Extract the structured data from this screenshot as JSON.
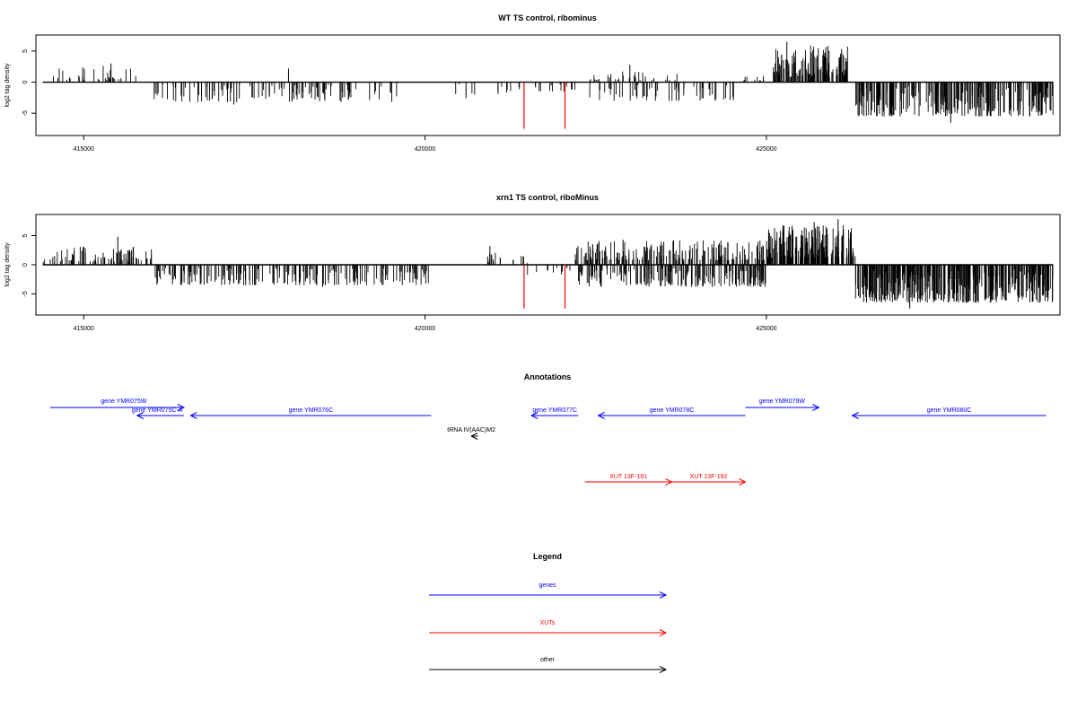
{
  "chart_data": [
    {
      "type": "bar",
      "title": "WT TS control, ribominus",
      "ylabel": "log2 tag density",
      "xlim": [
        414300,
        429300
      ],
      "ylim": [
        -8,
        7
      ],
      "xticks": [
        415000,
        420000,
        425000
      ],
      "yticks": [
        -5,
        0,
        5
      ],
      "colors": {
        "signal": "#000000",
        "trna": "#ff0000"
      },
      "segments": [
        {
          "from": 414400,
          "to": 415800,
          "count": 34,
          "min": 0.3,
          "max": 2.6
        },
        {
          "from": 416000,
          "to": 419600,
          "count": 120,
          "min": -3.2,
          "max": -0.4
        },
        {
          "from": 420400,
          "to": 421400,
          "count": 12,
          "min": -2.0,
          "max": -0.3
        },
        {
          "from": 421600,
          "to": 422200,
          "count": 14,
          "min": -1.5,
          "max": -0.3
        },
        {
          "from": 422400,
          "to": 423800,
          "count": 30,
          "min": 0.3,
          "max": 1.8
        },
        {
          "from": 422400,
          "to": 424600,
          "count": 60,
          "min": -3.0,
          "max": -0.4
        },
        {
          "from": 424600,
          "to": 425000,
          "count": 12,
          "min": 0.2,
          "max": 1.0
        },
        {
          "from": 425100,
          "to": 426200,
          "count": 140,
          "min": 0.8,
          "max": 6.0
        },
        {
          "from": 426300,
          "to": 429200,
          "count": 260,
          "min": -5.5,
          "max": -0.6
        }
      ],
      "spikes": [
        {
          "x": 415400,
          "y": 3.0
        },
        {
          "x": 418000,
          "y": 2.2
        },
        {
          "x": 417200,
          "y": -3.6
        },
        {
          "x": 420600,
          "y": -2.6
        },
        {
          "x": 423000,
          "y": 2.8
        },
        {
          "x": 425300,
          "y": 6.5
        },
        {
          "x": 425900,
          "y": 5.8
        },
        {
          "x": 427700,
          "y": -6.5
        },
        {
          "x": 426400,
          "y": -5.2
        }
      ],
      "trna": [
        {
          "x": 421450,
          "y": -7.5
        },
        {
          "x": 422050,
          "y": -7.5
        }
      ]
    },
    {
      "type": "bar",
      "title": "xrn1 TS control, riboMinus",
      "ylabel": "log2 tag density",
      "xlim": [
        414300,
        429300
      ],
      "ylim": [
        -8,
        8
      ],
      "xticks": [
        415000,
        420000,
        425000
      ],
      "yticks": [
        -5,
        0,
        5
      ],
      "colors": {
        "signal": "#000000",
        "trna": "#ff0000"
      },
      "segments": [
        {
          "from": 414400,
          "to": 416000,
          "count": 80,
          "min": 0.5,
          "max": 3.5
        },
        {
          "from": 416000,
          "to": 420100,
          "count": 200,
          "min": -3.5,
          "max": -0.5
        },
        {
          "from": 420900,
          "to": 421500,
          "count": 18,
          "min": 0.3,
          "max": 2.4
        },
        {
          "from": 421500,
          "to": 422200,
          "count": 12,
          "min": -1.8,
          "max": -0.3
        },
        {
          "from": 422200,
          "to": 425000,
          "count": 180,
          "min": 0.8,
          "max": 4.2
        },
        {
          "from": 422200,
          "to": 425000,
          "count": 180,
          "min": -3.8,
          "max": -0.6
        },
        {
          "from": 425000,
          "to": 426300,
          "count": 200,
          "min": 1.2,
          "max": 6.8
        },
        {
          "from": 426300,
          "to": 429200,
          "count": 380,
          "min": -6.5,
          "max": -0.8
        }
      ],
      "spikes": [
        {
          "x": 415500,
          "y": 4.8
        },
        {
          "x": 420950,
          "y": 3.2
        },
        {
          "x": 422900,
          "y": 4.3
        },
        {
          "x": 425700,
          "y": 7.3
        },
        {
          "x": 426050,
          "y": 7.8
        },
        {
          "x": 427100,
          "y": -7.5
        },
        {
          "x": 418500,
          "y": -3.8
        }
      ],
      "trna": [
        {
          "x": 421450,
          "y": -7.5
        },
        {
          "x": 422050,
          "y": -7.5
        }
      ]
    }
  ],
  "annotations": {
    "title": "Annotations",
    "xlim": [
      414300,
      429300
    ],
    "items": [
      {
        "label": "gene YMR075W",
        "start": 414300,
        "end": 416300,
        "strand": "+",
        "row": 0,
        "color": "#0000ff",
        "label_x": 415400
      },
      {
        "label": "gene YMR075C-A",
        "start": 415600,
        "end": 416300,
        "strand": "-",
        "row": 1,
        "color": "#0000ff",
        "label_x": 415900
      },
      {
        "label": "gene YMR076C",
        "start": 416400,
        "end": 420000,
        "strand": "-",
        "row": 1,
        "color": "#0000ff",
        "label_x": 418200
      },
      {
        "label": "gene YMR077C",
        "start": 421500,
        "end": 422200,
        "strand": "-",
        "row": 1,
        "color": "#0000ff",
        "label_x": 421850
      },
      {
        "label": "gene YMR078C",
        "start": 422500,
        "end": 424700,
        "strand": "-",
        "row": 1,
        "color": "#0000ff",
        "label_x": 423600
      },
      {
        "label": "gene YMR079W",
        "start": 424700,
        "end": 425800,
        "strand": "+",
        "row": 0,
        "color": "#0000ff",
        "label_x": 425250
      },
      {
        "label": "gene YMR080C",
        "start": 426300,
        "end": 429200,
        "strand": "-",
        "row": 1,
        "color": "#0000ff",
        "label_x": 427750
      },
      {
        "label": "tRNA tV(AAC)M2",
        "start": 420600,
        "end": 420700,
        "strand": "-",
        "row": 2,
        "color": "#000000",
        "label_x": 420600
      },
      {
        "label": "XUT 13F-191",
        "start": 422300,
        "end": 423600,
        "strand": "+",
        "row": 3,
        "color": "#ff0000",
        "label_x": 422950
      },
      {
        "label": "XUT 13F-192",
        "start": 423600,
        "end": 424700,
        "strand": "+",
        "row": 3,
        "color": "#ff0000",
        "label_x": 424150
      }
    ]
  },
  "legend": {
    "title": "Legend",
    "items": [
      {
        "label": "genes",
        "color": "#0000ff"
      },
      {
        "label": "XUTs",
        "color": "#ff0000"
      },
      {
        "label": "other",
        "color": "#000000"
      }
    ]
  }
}
